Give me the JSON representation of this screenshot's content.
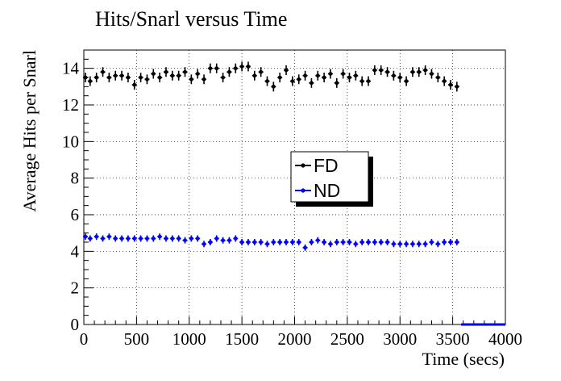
{
  "chart_data": {
    "type": "scatter",
    "title": "Hits/Snarl versus Time",
    "xlabel": "Time (secs)",
    "ylabel": "Average Hits per Snarl",
    "xlim": [
      0,
      4000
    ],
    "ylim": [
      0,
      15
    ],
    "x_ticks": [
      0,
      500,
      1000,
      1500,
      2000,
      2500,
      3000,
      3500,
      4000
    ],
    "y_ticks": [
      0,
      2,
      4,
      6,
      8,
      10,
      12,
      14
    ],
    "x_tick_labels": [
      "0",
      "500",
      "1000",
      "1500",
      "2000",
      "2500",
      "3000",
      "3500",
      "4000"
    ],
    "y_tick_labels": [
      "0",
      "2",
      "4",
      "6",
      "8",
      "10",
      "12",
      "14"
    ],
    "grid": true,
    "legend": {
      "placement": "center"
    },
    "colors": {
      "FD": "#000000",
      "ND": "#0000ff"
    },
    "series": [
      {
        "name": "FD",
        "color": "#000000",
        "x": [
          15,
          60,
          120,
          180,
          240,
          300,
          360,
          420,
          480,
          540,
          600,
          660,
          720,
          780,
          840,
          900,
          960,
          1020,
          1080,
          1140,
          1200,
          1260,
          1320,
          1380,
          1440,
          1500,
          1560,
          1620,
          1680,
          1740,
          1800,
          1860,
          1920,
          1980,
          2040,
          2100,
          2160,
          2220,
          2280,
          2340,
          2400,
          2460,
          2520,
          2580,
          2640,
          2700,
          2760,
          2820,
          2880,
          2940,
          3000,
          3060,
          3120,
          3180,
          3240,
          3300,
          3360,
          3420,
          3480,
          3540
        ],
        "y": [
          13.5,
          13.3,
          13.5,
          13.8,
          13.5,
          13.6,
          13.6,
          13.5,
          13.1,
          13.5,
          13.4,
          13.7,
          13.5,
          13.8,
          13.6,
          13.6,
          13.8,
          13.4,
          13.7,
          13.4,
          14.0,
          14.0,
          13.5,
          13.8,
          14.0,
          14.1,
          14.1,
          13.6,
          13.8,
          13.3,
          13.0,
          13.5,
          13.9,
          13.3,
          13.4,
          13.6,
          13.2,
          13.6,
          13.5,
          13.7,
          13.2,
          13.7,
          13.5,
          13.6,
          13.3,
          13.3,
          13.9,
          13.9,
          13.8,
          13.6,
          13.5,
          13.3,
          13.8,
          13.8,
          13.9,
          13.7,
          13.5,
          13.3,
          13.1,
          13.0
        ]
      },
      {
        "name": "ND",
        "color": "#0000ff",
        "x": [
          15,
          60,
          120,
          180,
          240,
          300,
          360,
          420,
          480,
          540,
          600,
          660,
          720,
          780,
          840,
          900,
          960,
          1020,
          1080,
          1140,
          1200,
          1260,
          1320,
          1380,
          1440,
          1500,
          1560,
          1620,
          1680,
          1740,
          1800,
          1860,
          1920,
          1980,
          2040,
          2100,
          2160,
          2220,
          2280,
          2340,
          2400,
          2460,
          2520,
          2580,
          2640,
          2700,
          2760,
          2820,
          2880,
          2940,
          3000,
          3060,
          3120,
          3180,
          3240,
          3300,
          3360,
          3420,
          3480,
          3540
        ],
        "y": [
          4.8,
          4.7,
          4.8,
          4.7,
          4.8,
          4.7,
          4.7,
          4.7,
          4.7,
          4.7,
          4.7,
          4.7,
          4.8,
          4.7,
          4.7,
          4.7,
          4.6,
          4.7,
          4.7,
          4.4,
          4.5,
          4.7,
          4.6,
          4.6,
          4.7,
          4.5,
          4.5,
          4.5,
          4.5,
          4.4,
          4.5,
          4.5,
          4.5,
          4.5,
          4.5,
          4.2,
          4.5,
          4.6,
          4.5,
          4.4,
          4.5,
          4.5,
          4.5,
          4.4,
          4.5,
          4.5,
          4.5,
          4.5,
          4.5,
          4.4,
          4.4,
          4.4,
          4.4,
          4.4,
          4.4,
          4.5,
          4.4,
          4.5,
          4.5,
          4.5
        ]
      }
    ]
  }
}
